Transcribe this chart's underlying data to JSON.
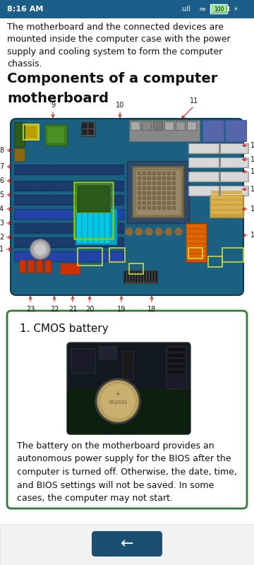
{
  "status_bar_color": "#1b5e8a",
  "bg_color": "#ffffff",
  "intro_text": "The motherboard and the connected devices are\nmounted inside the computer case with the power\nsupply and cooling system to form the computer\nchassis.",
  "heading_line1": "Components of a computer",
  "heading_line2": "motherboard",
  "card_border_color": "#2e7d32",
  "card_title": "1. CMOS battery",
  "card_desc": "The battery on the motherboard provides an\nautonomous power supply for the BIOS after the\ncomputer is turned off. Otherwise, the date, time,\nand BIOS settings will not be saved. In some\ncases, the computer may not start.",
  "nav_arrow_color": "#1b4f72",
  "arrow_color": "#cc0000",
  "label_color": "#111111",
  "mb_pcb_color": "#1a5e7a",
  "mb_edge_color": "#0d3d52"
}
